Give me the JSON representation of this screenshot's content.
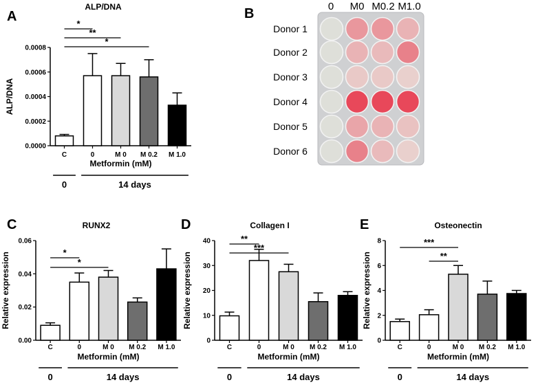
{
  "colors": {
    "bar_fills": [
      "#ffffff",
      "#ffffff",
      "#d9d9d9",
      "#6e6e6e",
      "#000000"
    ],
    "stain_strong": "#e8485a",
    "stain_medium": "#ee8f98",
    "stain_faint": "#e9d7d3",
    "well_empty": "#dedfd9",
    "plate_bg": "#cfd0d2"
  },
  "chart_data": [
    {
      "panel": "A",
      "type": "bar",
      "title": "ALP/DNA",
      "ylabel": "ALP/DNA",
      "xlabel": "Metformin (mM)",
      "categories": [
        "C",
        "0",
        "M 0",
        "M 0.2",
        "M 1.0"
      ],
      "values": [
        8e-05,
        0.00057,
        0.00057,
        0.00056,
        0.00033
      ],
      "errors": [
        1.2e-05,
        0.00018,
        0.0001,
        0.00014,
        0.0001
      ],
      "ylim": [
        0,
        0.0008
      ],
      "yticks": [
        "0.0000",
        "0.0002",
        "0.0004",
        "0.0006",
        "0.0008"
      ],
      "ytick_values": [
        0,
        0.0002,
        0.0004,
        0.0006,
        0.0008
      ],
      "significance": [
        {
          "from": 0,
          "to": 1,
          "label": "*"
        },
        {
          "from": 0,
          "to": 2,
          "label": "**"
        },
        {
          "from": 0,
          "to": 3,
          "label": "*"
        }
      ],
      "timepoints": [
        {
          "label": "0",
          "from": 0,
          "to": 0
        },
        {
          "label": "14 days",
          "from": 1,
          "to": 4
        }
      ]
    },
    {
      "panel": "C",
      "type": "bar",
      "title": "RUNX2",
      "ylabel": "Relative expression",
      "xlabel": "Metformin (mM)",
      "categories": [
        "C",
        "0",
        "M 0",
        "M 0.2",
        "M 1.0"
      ],
      "values": [
        0.009,
        0.035,
        0.038,
        0.023,
        0.043
      ],
      "errors": [
        0.0015,
        0.0055,
        0.004,
        0.0025,
        0.012
      ],
      "ylim": [
        0,
        0.06
      ],
      "yticks": [
        "0.00",
        "0.02",
        "0.04",
        "0.06"
      ],
      "ytick_values": [
        0,
        0.02,
        0.04,
        0.06
      ],
      "significance": [
        {
          "from": 0,
          "to": 1,
          "label": "*"
        },
        {
          "from": 0,
          "to": 2,
          "label": "*"
        }
      ],
      "timepoints": [
        {
          "label": "0",
          "from": 0,
          "to": 0
        },
        {
          "label": "14 days",
          "from": 1,
          "to": 4
        }
      ]
    },
    {
      "panel": "D",
      "type": "bar",
      "title": "Collagen I",
      "ylabel": "Relative expression",
      "xlabel": "Metformin (mM)",
      "categories": [
        "C",
        "0",
        "M 0",
        "M 0.2",
        "M 1.0"
      ],
      "values": [
        9.8,
        32,
        27.5,
        15.5,
        18
      ],
      "errors": [
        1.5,
        4.5,
        3,
        3.5,
        1.5
      ],
      "ylim": [
        0,
        40
      ],
      "yticks": [
        "0",
        "10",
        "20",
        "30",
        "40"
      ],
      "ytick_values": [
        0,
        10,
        20,
        30,
        40
      ],
      "significance": [
        {
          "from": 0,
          "to": 1,
          "label": "**"
        },
        {
          "from": 0,
          "to": 2,
          "label": "***"
        }
      ],
      "timepoints": [
        {
          "label": "0",
          "from": 0,
          "to": 0
        },
        {
          "label": "14 days",
          "from": 1,
          "to": 4
        }
      ]
    },
    {
      "panel": "E",
      "type": "bar",
      "title": "Osteonectin",
      "ylabel": "Relative expression",
      "xlabel": "Metformin (mM)",
      "categories": [
        "C",
        "0",
        "M 0",
        "M 0.2",
        "M 1.0"
      ],
      "values": [
        1.5,
        2.05,
        5.3,
        3.7,
        3.75
      ],
      "errors": [
        0.2,
        0.4,
        0.7,
        1.05,
        0.25
      ],
      "ylim": [
        0,
        8
      ],
      "yticks": [
        "0",
        "2",
        "4",
        "6",
        "8"
      ],
      "ytick_values": [
        0,
        2,
        4,
        6,
        8
      ],
      "significance": [
        {
          "from": 0,
          "to": 2,
          "label": "***"
        },
        {
          "from": 1,
          "to": 2,
          "label": "**"
        }
      ],
      "timepoints": [
        {
          "label": "0",
          "from": 0,
          "to": 0
        },
        {
          "label": "14 days",
          "from": 1,
          "to": 4
        }
      ]
    }
  ],
  "plate": {
    "panel": "B",
    "columns": [
      "0",
      "M0",
      "M0.2",
      "M1.0"
    ],
    "donors": [
      "Donor 1",
      "Donor 2",
      "Donor 3",
      "Donor 4",
      "Donor 5",
      "Donor 6"
    ],
    "stain_intensity": [
      [
        0.0,
        0.45,
        0.45,
        0.25
      ],
      [
        0.0,
        0.25,
        0.2,
        0.6
      ],
      [
        0.0,
        0.1,
        0.1,
        0.05
      ],
      [
        0.0,
        1.0,
        1.0,
        1.0
      ],
      [
        0.0,
        0.35,
        0.25,
        0.15
      ],
      [
        0.0,
        0.6,
        0.2,
        0.05
      ]
    ]
  }
}
